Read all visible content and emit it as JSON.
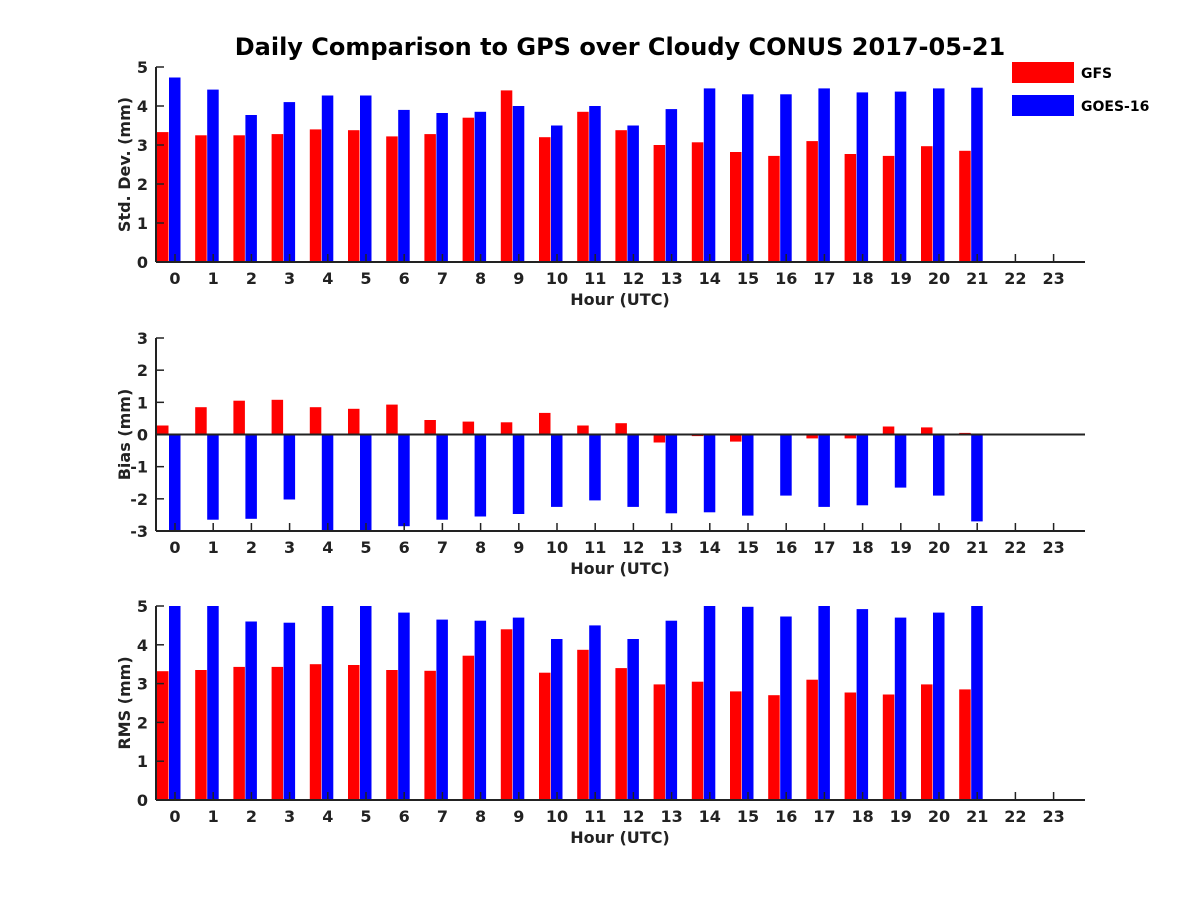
{
  "title": "Daily Comparison to GPS over Cloudy CONUS 2017-05-21",
  "colors": {
    "GFS": "#ff0000",
    "GOES-16": "#0000ff",
    "axis": "#222222"
  },
  "legend": [
    "GFS",
    "GOES-16"
  ],
  "chart_data": [
    {
      "type": "bar",
      "ylabel": "Std. Dev. (mm)",
      "xlabel": "Hour (UTC)",
      "ylim": [
        0,
        5
      ],
      "yticks": [
        0,
        1,
        2,
        3,
        4,
        5
      ],
      "categories": [
        "0",
        "1",
        "2",
        "3",
        "4",
        "5",
        "6",
        "7",
        "8",
        "9",
        "10",
        "11",
        "12",
        "13",
        "14",
        "15",
        "16",
        "17",
        "18",
        "19",
        "20",
        "21",
        "22",
        "23"
      ],
      "series": [
        {
          "name": "GFS",
          "values": [
            3.33,
            3.25,
            3.25,
            3.28,
            3.4,
            3.38,
            3.22,
            3.28,
            3.7,
            4.4,
            3.2,
            3.85,
            3.38,
            3.0,
            3.07,
            2.82,
            2.72,
            3.1,
            2.77,
            2.72,
            2.97,
            2.85,
            null,
            null
          ]
        },
        {
          "name": "GOES-16",
          "values": [
            4.73,
            4.42,
            3.77,
            4.1,
            4.27,
            4.27,
            3.9,
            3.82,
            3.85,
            4.0,
            3.5,
            4.0,
            3.5,
            3.92,
            4.45,
            4.3,
            4.3,
            4.45,
            4.35,
            4.37,
            4.45,
            4.47,
            null,
            null
          ]
        }
      ]
    },
    {
      "type": "bar",
      "ylabel": "Bias (mm)",
      "xlabel": "Hour (UTC)",
      "ylim": [
        -3,
        3
      ],
      "yticks": [
        -3,
        -2,
        -1,
        0,
        1,
        2,
        3
      ],
      "categories": [
        "0",
        "1",
        "2",
        "3",
        "4",
        "5",
        "6",
        "7",
        "8",
        "9",
        "10",
        "11",
        "12",
        "13",
        "14",
        "15",
        "16",
        "17",
        "18",
        "19",
        "20",
        "21",
        "22",
        "23"
      ],
      "series": [
        {
          "name": "GFS",
          "values": [
            0.28,
            0.85,
            1.05,
            1.08,
            0.85,
            0.8,
            0.93,
            0.45,
            0.4,
            0.38,
            0.67,
            0.28,
            0.35,
            -0.25,
            -0.05,
            -0.22,
            0.0,
            -0.12,
            -0.12,
            0.25,
            0.22,
            0.05,
            null,
            null
          ]
        },
        {
          "name": "GOES-16",
          "values": [
            -3.0,
            -2.65,
            -2.62,
            -2.02,
            -3.0,
            -3.0,
            -2.85,
            -2.65,
            -2.55,
            -2.47,
            -2.25,
            -2.05,
            -2.25,
            -2.45,
            -2.42,
            -2.52,
            -1.9,
            -2.25,
            -2.2,
            -1.65,
            -1.9,
            -2.7,
            null,
            null
          ]
        }
      ]
    },
    {
      "type": "bar",
      "ylabel": "RMS (mm)",
      "xlabel": "Hour (UTC)",
      "ylim": [
        0,
        5
      ],
      "yticks": [
        0,
        1,
        2,
        3,
        4,
        5
      ],
      "categories": [
        "0",
        "1",
        "2",
        "3",
        "4",
        "5",
        "6",
        "7",
        "8",
        "9",
        "10",
        "11",
        "12",
        "13",
        "14",
        "15",
        "16",
        "17",
        "18",
        "19",
        "20",
        "21",
        "22",
        "23"
      ],
      "series": [
        {
          "name": "GFS",
          "values": [
            3.32,
            3.35,
            3.43,
            3.43,
            3.5,
            3.48,
            3.35,
            3.33,
            3.72,
            4.4,
            3.28,
            3.87,
            3.4,
            2.98,
            3.05,
            2.8,
            2.7,
            3.1,
            2.77,
            2.72,
            2.98,
            2.85,
            null,
            null
          ]
        },
        {
          "name": "GOES-16",
          "values": [
            5.0,
            5.0,
            4.6,
            4.57,
            5.0,
            5.0,
            4.83,
            4.65,
            4.62,
            4.7,
            4.15,
            4.5,
            4.15,
            4.62,
            5.0,
            4.98,
            4.73,
            5.0,
            4.92,
            4.7,
            4.83,
            5.0,
            null,
            null
          ]
        }
      ]
    }
  ]
}
